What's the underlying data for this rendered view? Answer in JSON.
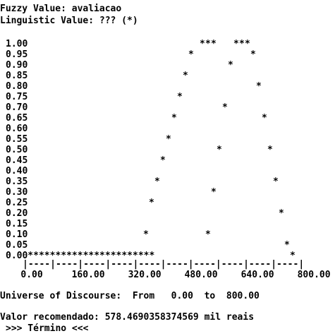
{
  "header": {
    "fuzzy_value_line": "Fuzzy Value: avaliacao",
    "linguistic_value_line": "Linguistic Value: ??? (*)"
  },
  "chart_data": {
    "type": "scatter",
    "marker": "*",
    "y_tick_labels": [
      "1.00",
      "0.95",
      "0.90",
      "0.85",
      "0.80",
      "0.75",
      "0.70",
      "0.65",
      "0.60",
      "0.55",
      "0.50",
      "0.45",
      "0.40",
      "0.35",
      "0.30",
      "0.25",
      "0.20",
      "0.15",
      "0.10",
      "0.05",
      "0.00"
    ],
    "x_tick_labels": [
      "0.00",
      "160.00",
      "320.00",
      "480.00",
      "640.00",
      "800.00"
    ],
    "x_axis_line": "|----|----|----|----|----|----|----|----|----|----|",
    "baseline_line": "0.00***********************",
    "ylim": [
      0,
      1
    ],
    "xlim": [
      0,
      800
    ],
    "points": [
      {
        "x": 480,
        "y": 1.0
      },
      {
        "x": 496,
        "y": 1.0
      },
      {
        "x": 512,
        "y": 1.0
      },
      {
        "x": 576,
        "y": 1.0
      },
      {
        "x": 592,
        "y": 1.0
      },
      {
        "x": 608,
        "y": 1.0
      },
      {
        "x": 448,
        "y": 0.95
      },
      {
        "x": 624,
        "y": 0.95
      },
      {
        "x": 560,
        "y": 0.9
      },
      {
        "x": 432,
        "y": 0.85
      },
      {
        "x": 640,
        "y": 0.8
      },
      {
        "x": 416,
        "y": 0.75
      },
      {
        "x": 544,
        "y": 0.7
      },
      {
        "x": 400,
        "y": 0.65
      },
      {
        "x": 656,
        "y": 0.65
      },
      {
        "x": 384,
        "y": 0.55
      },
      {
        "x": 528,
        "y": 0.5
      },
      {
        "x": 672,
        "y": 0.5
      },
      {
        "x": 368,
        "y": 0.45
      },
      {
        "x": 352,
        "y": 0.35
      },
      {
        "x": 688,
        "y": 0.35
      },
      {
        "x": 512,
        "y": 0.3
      },
      {
        "x": 336,
        "y": 0.25
      },
      {
        "x": 704,
        "y": 0.2
      },
      {
        "x": 320,
        "y": 0.1
      },
      {
        "x": 496,
        "y": 0.1
      },
      {
        "x": 720,
        "y": 0.05
      },
      {
        "x": 736,
        "y": 0.0
      }
    ]
  },
  "footer": {
    "universe_line": "Universe of Discourse:  From   0.00  to  800.00",
    "valor_line": "Valor recomendado: 578.4690358374569 mil reais",
    "termino_line": ">>> Término <<<"
  }
}
